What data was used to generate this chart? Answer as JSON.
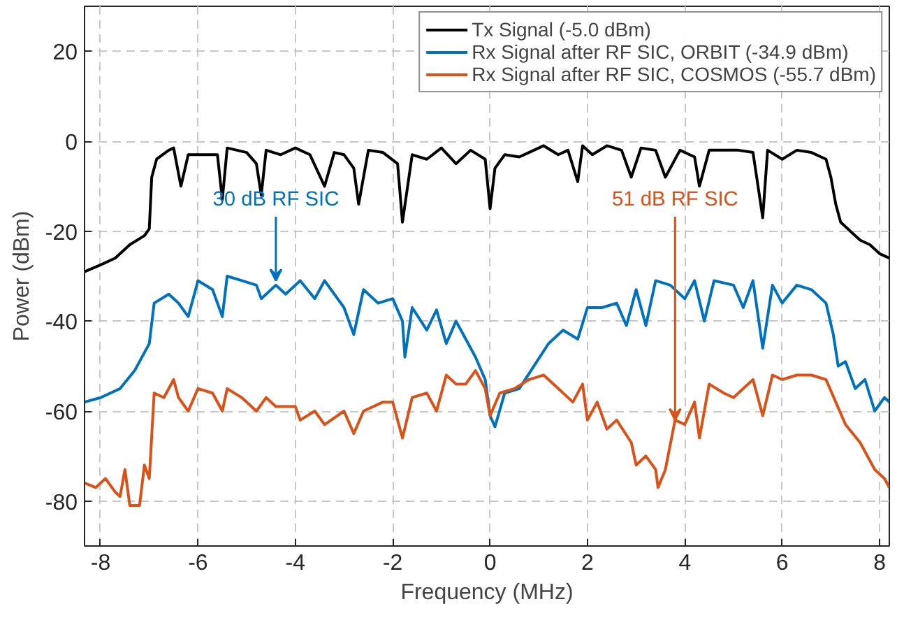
{
  "chart_data": {
    "type": "line",
    "xlabel": "Frequency (MHz)",
    "ylabel": "Power (dBm)",
    "xlim": [
      -8.33,
      8.2
    ],
    "ylim": [
      -90,
      30
    ],
    "xticks": [
      -8,
      -6,
      -4,
      -2,
      0,
      2,
      4,
      6,
      8
    ],
    "yticks": [
      -80,
      -60,
      -40,
      -20,
      0,
      20
    ],
    "grid": true,
    "legend": "top right",
    "line_style": "solid",
    "annotations": [
      {
        "text": "30 dB RF SIC",
        "x": -4.4,
        "y": -31
      },
      {
        "text": "51 dB RF SIC",
        "x": 3.8,
        "y": -62
      }
    ],
    "series": [
      {
        "name": "Tx Signal (-5.0 dBm)",
        "color": "#000000",
        "x": [
          -8.33,
          -8.0,
          -7.7,
          -7.4,
          -7.1,
          -7.0,
          -6.95,
          -6.85,
          -6.6,
          -6.5,
          -6.35,
          -6.2,
          -5.9,
          -5.6,
          -5.5,
          -5.4,
          -5.0,
          -4.8,
          -4.7,
          -4.6,
          -4.3,
          -4.0,
          -3.7,
          -3.4,
          -3.2,
          -3.0,
          -2.8,
          -2.7,
          -2.5,
          -2.2,
          -1.9,
          -1.8,
          -1.6,
          -1.3,
          -1.0,
          -0.7,
          -0.4,
          -0.1,
          0.0,
          0.1,
          0.3,
          0.6,
          0.9,
          1.1,
          1.4,
          1.6,
          1.8,
          1.9,
          2.1,
          2.4,
          2.7,
          2.9,
          3.1,
          3.4,
          3.6,
          3.9,
          4.2,
          4.3,
          4.5,
          4.8,
          5.1,
          5.4,
          5.6,
          5.7,
          6.0,
          6.3,
          6.6,
          6.9,
          7.0,
          7.1,
          7.2,
          7.4,
          7.6,
          7.8,
          8.0,
          8.2
        ],
        "values": [
          -29,
          -27.5,
          -26,
          -23,
          -21,
          -19.5,
          -8,
          -4,
          -2,
          -1.5,
          -10,
          -3,
          -3,
          -3,
          -13,
          -1.5,
          -2.5,
          -5,
          -12,
          -2,
          -3,
          -1.5,
          -3,
          -10,
          -2.5,
          -3,
          -6,
          -14,
          -2,
          -2.5,
          -5,
          -18,
          -3,
          -4,
          -1.5,
          -5,
          -2,
          -4,
          -15,
          -6,
          -3,
          -3.5,
          -2,
          -1,
          -3,
          -2,
          -9,
          -1,
          -3,
          -1,
          -2,
          -8,
          -1.5,
          -2,
          -8,
          -2,
          -3.5,
          -10,
          -2,
          -2,
          -2,
          -2.5,
          -17,
          -2,
          -4,
          -2,
          -2.5,
          -4,
          -8,
          -14,
          -18,
          -20,
          -22,
          -23,
          -25,
          -26
        ]
      },
      {
        "name": "Rx Signal after RF SIC, ORBIT (-34.9 dBm)",
        "color": "#0072bd",
        "x": [
          -8.33,
          -8.0,
          -7.6,
          -7.3,
          -7.1,
          -7.0,
          -6.9,
          -6.6,
          -6.4,
          -6.2,
          -6.0,
          -5.7,
          -5.5,
          -5.4,
          -5.1,
          -4.8,
          -4.7,
          -4.4,
          -4.2,
          -3.9,
          -3.6,
          -3.4,
          -3.0,
          -2.8,
          -2.6,
          -2.3,
          -2.0,
          -1.8,
          -1.75,
          -1.6,
          -1.3,
          -1.1,
          -0.9,
          -0.7,
          -0.5,
          -0.3,
          -0.1,
          0.0,
          0.1,
          0.3,
          0.6,
          0.9,
          1.2,
          1.5,
          1.8,
          2.0,
          2.3,
          2.6,
          2.8,
          3.0,
          3.2,
          3.4,
          3.7,
          4.0,
          4.2,
          4.4,
          4.6,
          5.0,
          5.2,
          5.4,
          5.6,
          5.8,
          6.0,
          6.3,
          6.6,
          6.9,
          7.05,
          7.15,
          7.3,
          7.5,
          7.7,
          7.9,
          8.1,
          8.2
        ],
        "values": [
          -58,
          -57,
          -55,
          -51,
          -47,
          -45,
          -36,
          -34,
          -36,
          -39,
          -31,
          -33,
          -39,
          -30,
          -31,
          -32,
          -35,
          -32,
          -34,
          -31,
          -35,
          -31,
          -37,
          -43,
          -33,
          -36,
          -35,
          -40,
          -48,
          -37,
          -42,
          -37.5,
          -45,
          -40,
          -44,
          -48,
          -53,
          -61,
          -63.5,
          -56,
          -55,
          -50,
          -45,
          -42,
          -44,
          -37,
          -37,
          -36,
          -41,
          -33,
          -41,
          -31,
          -32,
          -35,
          -31,
          -40,
          -31,
          -32,
          -37,
          -31,
          -46,
          -32,
          -36,
          -32,
          -33,
          -36,
          -43,
          -50,
          -49,
          -55,
          -53,
          -60,
          -57,
          -58
        ]
      },
      {
        "name": "Rx Signal after RF SIC, COSMOS (-55.7 dBm)",
        "color": "#d95319",
        "x": [
          -8.33,
          -8.1,
          -7.9,
          -7.7,
          -7.6,
          -7.5,
          -7.4,
          -7.2,
          -7.1,
          -7.0,
          -6.9,
          -6.7,
          -6.5,
          -6.4,
          -6.2,
          -6.0,
          -5.7,
          -5.5,
          -5.4,
          -5.1,
          -4.8,
          -4.6,
          -4.4,
          -4.0,
          -3.9,
          -3.6,
          -3.4,
          -3.0,
          -2.8,
          -2.6,
          -2.2,
          -2.0,
          -1.8,
          -1.6,
          -1.3,
          -1.1,
          -0.9,
          -0.7,
          -0.5,
          -0.3,
          -0.1,
          0.0,
          0.2,
          0.5,
          0.8,
          1.1,
          1.4,
          1.7,
          1.9,
          2.0,
          2.2,
          2.4,
          2.6,
          2.9,
          3.0,
          3.2,
          3.4,
          3.45,
          3.6,
          3.8,
          4.0,
          4.2,
          4.3,
          4.5,
          4.8,
          5.0,
          5.2,
          5.4,
          5.6,
          5.8,
          6.0,
          6.3,
          6.6,
          6.9,
          7.1,
          7.3,
          7.6,
          7.9,
          8.1,
          8.2
        ],
        "values": [
          -76,
          -77,
          -75,
          -78,
          -79,
          -73,
          -81,
          -81,
          -72,
          -75,
          -56,
          -57,
          -53,
          -57,
          -60,
          -55,
          -56,
          -60,
          -55,
          -57,
          -60,
          -57,
          -59,
          -59,
          -62,
          -60,
          -63,
          -60,
          -65,
          -60,
          -58,
          -58,
          -66,
          -57,
          -56,
          -60,
          -52,
          -54,
          -54,
          -51,
          -55,
          -61,
          -56,
          -55,
          -53,
          -52,
          -55,
          -58,
          -54,
          -62,
          -58,
          -64,
          -62,
          -67,
          -72,
          -70,
          -73,
          -77,
          -73,
          -62,
          -63,
          -58,
          -66,
          -54,
          -56,
          -57,
          -55,
          -53,
          -61,
          -52,
          -53,
          -52,
          -52,
          -53,
          -58,
          -63,
          -67,
          -73,
          -75,
          -77
        ]
      }
    ]
  }
}
